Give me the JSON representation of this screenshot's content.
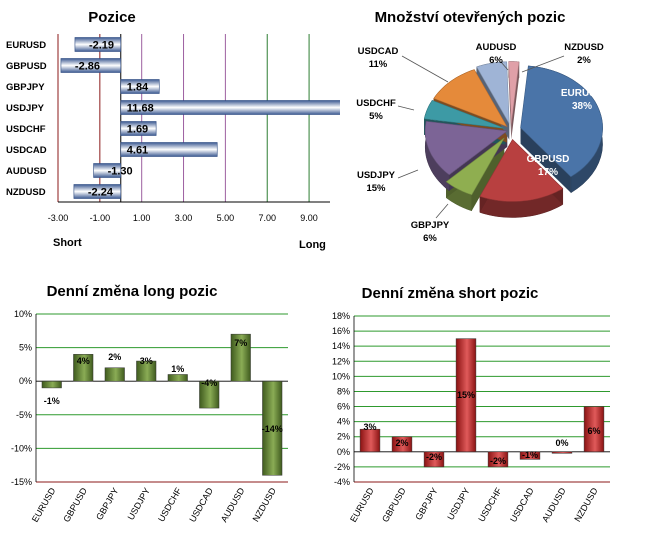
{
  "chart_data": [
    {
      "id": "pozice",
      "type": "bar",
      "orientation": "horizontal",
      "title": "Pozice",
      "categories": [
        "EURUSD",
        "GBPUSD",
        "GBPJPY",
        "USDJPY",
        "USDCHF",
        "USDCAD",
        "AUDUSD",
        "NZDUSD"
      ],
      "values": [
        -2.19,
        -2.86,
        1.84,
        11.68,
        1.69,
        4.61,
        -1.3,
        -2.24
      ],
      "value_labels": [
        "-2.19",
        "-2.86",
        "1.84",
        "11.68",
        "1.69",
        "4.61",
        "-1.30",
        "-2.24"
      ],
      "xlim": [
        -3.0,
        10.0
      ],
      "x_ticks": [
        "-3.00",
        "-1.00",
        "1.00",
        "3.00",
        "5.00",
        "7.00",
        "9.00"
      ],
      "left_label": "Short",
      "right_label": "Long",
      "bar_color": "#4f6fa8",
      "grid_colors": {
        "negative": "#8b1a1a",
        "positive_a": "#9c5fa0",
        "positive_b": "#2e7d32"
      }
    },
    {
      "id": "otevrene",
      "type": "pie",
      "title": "Množství otevřených pozic",
      "slices": [
        {
          "label": "EURUSD",
          "value": 38,
          "pct": "38%",
          "color": "#4a74a8"
        },
        {
          "label": "GBPUSD",
          "value": 17,
          "pct": "17%",
          "color": "#b84040"
        },
        {
          "label": "GBPJPY",
          "value": 6,
          "pct": "6%",
          "color": "#8fae50"
        },
        {
          "label": "USDJPY",
          "value": 15,
          "pct": "15%",
          "color": "#7c6496"
        },
        {
          "label": "USDCHF",
          "value": 5,
          "pct": "5%",
          "color": "#3d9aa5"
        },
        {
          "label": "USDCAD",
          "value": 11,
          "pct": "11%",
          "color": "#e58a3a"
        },
        {
          "label": "AUDUSD",
          "value": 6,
          "pct": "6%",
          "color": "#9fb4d6"
        },
        {
          "label": "NZDUSD",
          "value": 2,
          "pct": "2%",
          "color": "#e0a0a8"
        }
      ]
    },
    {
      "id": "long",
      "type": "bar",
      "title": "Denní změna long pozic",
      "categories": [
        "EURUSD",
        "GBPUSD",
        "GBPJPY",
        "USDJPY",
        "USDCHF",
        "USDCAD",
        "AUDUSD",
        "NZDUSD"
      ],
      "values": [
        -1,
        4,
        2,
        3,
        1,
        -4,
        7,
        -14
      ],
      "value_labels": [
        "-1%",
        "4%",
        "2%",
        "3%",
        "1%",
        "-4%",
        "7%",
        "-14%"
      ],
      "ylim": [
        -15,
        10
      ],
      "y_ticks": [
        "10%",
        "5%",
        "0%",
        "-5%",
        "-10%",
        "-15%"
      ],
      "bar_color": "#6b8a3a",
      "grid_color": "#2e9a2e",
      "base_color": "#8b1a1a"
    },
    {
      "id": "short",
      "type": "bar",
      "title": "Denní změna short pozic",
      "categories": [
        "EURUSD",
        "GBPUSD",
        "GBPJPY",
        "USDJPY",
        "USDCHF",
        "USDCAD",
        "AUDUSD",
        "NZDUSD"
      ],
      "values": [
        3,
        2,
        -2,
        15,
        -2,
        -1,
        0,
        6
      ],
      "value_labels": [
        "3%",
        "2%",
        "-2%",
        "15%",
        "-2%",
        "-1%",
        "0%",
        "6%"
      ],
      "ylim": [
        -4,
        18
      ],
      "y_ticks": [
        "18%",
        "16%",
        "14%",
        "12%",
        "10%",
        "8%",
        "6%",
        "4%",
        "2%",
        "0%",
        "-2%",
        "-4%"
      ],
      "bar_color": "#c83030",
      "grid_color": "#2e9a2e",
      "base_color": "#8b1a1a"
    }
  ]
}
